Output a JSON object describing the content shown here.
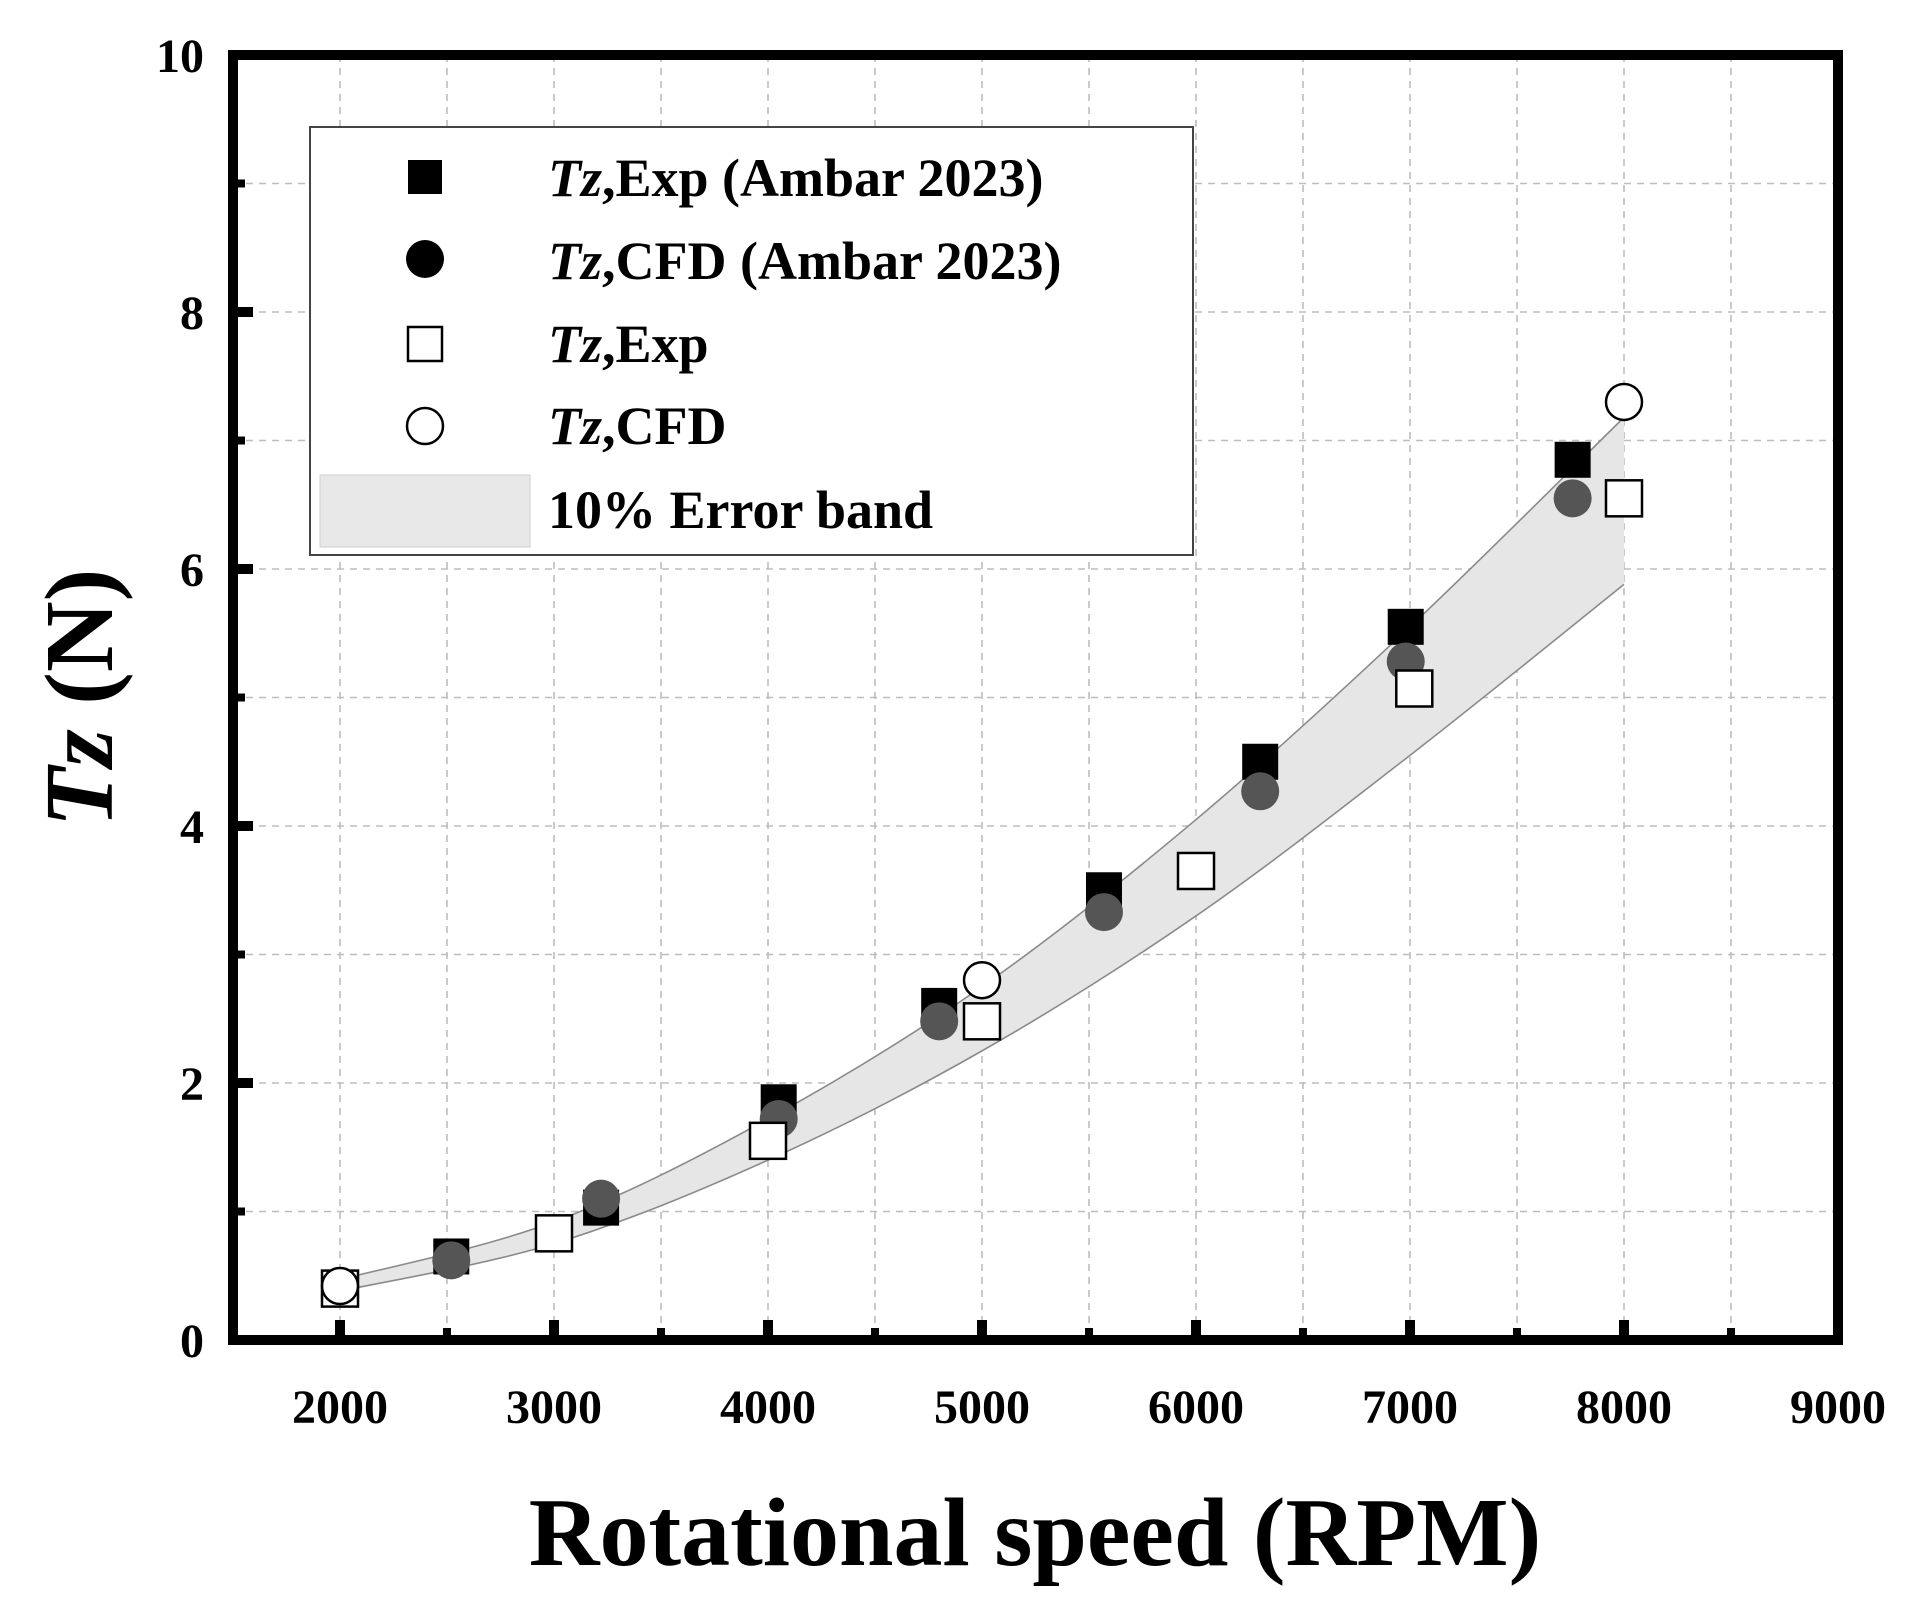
{
  "chart_data": {
    "type": "scatter",
    "title": "",
    "xlabel": "Rotational speed (RPM)",
    "ylabel": {
      "italic": "Tz",
      "rest": " (N)"
    },
    "xlim": [
      1500,
      9000
    ],
    "ylim": [
      0,
      10
    ],
    "xticks": [
      2000,
      3000,
      4000,
      5000,
      6000,
      7000,
      8000,
      9000
    ],
    "yticks": [
      0,
      2,
      4,
      6,
      8,
      10
    ],
    "grid": true,
    "legend_position": "top-left",
    "error_band": {
      "name": "10% Error band",
      "x": [
        2000,
        3000,
        4000,
        5000,
        6000,
        7000,
        8000
      ],
      "upper": [
        0.47,
        0.92,
        1.72,
        2.75,
        4.05,
        5.55,
        7.18
      ],
      "lower": [
        0.38,
        0.75,
        1.4,
        2.25,
        3.3,
        4.55,
        5.88
      ]
    },
    "series": [
      {
        "name": "Tz,Exp (Ambar 2023)",
        "legend_italic": "Tz",
        "legend_rest": ",Exp (Ambar 2023)",
        "marker": "square-filled",
        "x": [
          2000,
          2520,
          3220,
          4050,
          4800,
          5570,
          6300,
          6980,
          7760
        ],
        "y": [
          0.4,
          0.65,
          1.03,
          1.85,
          2.6,
          3.5,
          4.5,
          5.55,
          6.85
        ]
      },
      {
        "name": "Tz,CFD (Ambar 2023)",
        "legend_italic": "Tz",
        "legend_rest": ",CFD (Ambar 2023)",
        "marker": "circle-filled",
        "x": [
          2000,
          2520,
          3220,
          4050,
          4800,
          5570,
          6300,
          6980,
          7760
        ],
        "y": [
          0.4,
          0.62,
          1.1,
          1.72,
          2.48,
          3.33,
          4.27,
          5.28,
          6.55
        ]
      },
      {
        "name": "Tz,Exp",
        "legend_italic": "Tz",
        "legend_rest": ",Exp",
        "marker": "square-open",
        "x": [
          2000,
          3000,
          4000,
          5000,
          6000,
          7020,
          8000
        ],
        "y": [
          0.4,
          0.83,
          1.55,
          2.48,
          3.65,
          5.07,
          6.55
        ]
      },
      {
        "name": "Tz,CFD",
        "legend_italic": "Tz",
        "legend_rest": ",CFD",
        "marker": "circle-open",
        "x": [
          2000,
          5000,
          8000
        ],
        "y": [
          0.42,
          2.8,
          7.3
        ]
      }
    ]
  }
}
